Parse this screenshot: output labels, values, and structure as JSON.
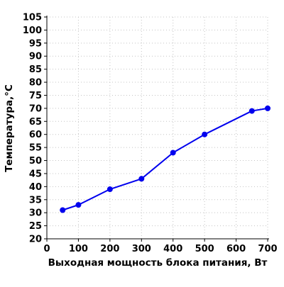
{
  "chart_data": {
    "type": "line",
    "title": "",
    "xlabel": "Выходная мощность блока питания, Вт",
    "ylabel": "Температура,°С",
    "xlim": [
      0,
      700
    ],
    "ylim": [
      20,
      105
    ],
    "x_ticks": [
      0,
      100,
      200,
      300,
      400,
      500,
      600,
      700
    ],
    "y_ticks": [
      20,
      25,
      30,
      35,
      40,
      45,
      50,
      55,
      60,
      65,
      70,
      75,
      80,
      85,
      90,
      95,
      100,
      105
    ],
    "grid": true,
    "legend": "none",
    "series": [
      {
        "color": "#0000ee",
        "x": [
          50,
          100,
          200,
          300,
          400,
          500,
          650,
          700
        ],
        "y": [
          31,
          33,
          39,
          43,
          53,
          60,
          69,
          70
        ]
      }
    ]
  }
}
